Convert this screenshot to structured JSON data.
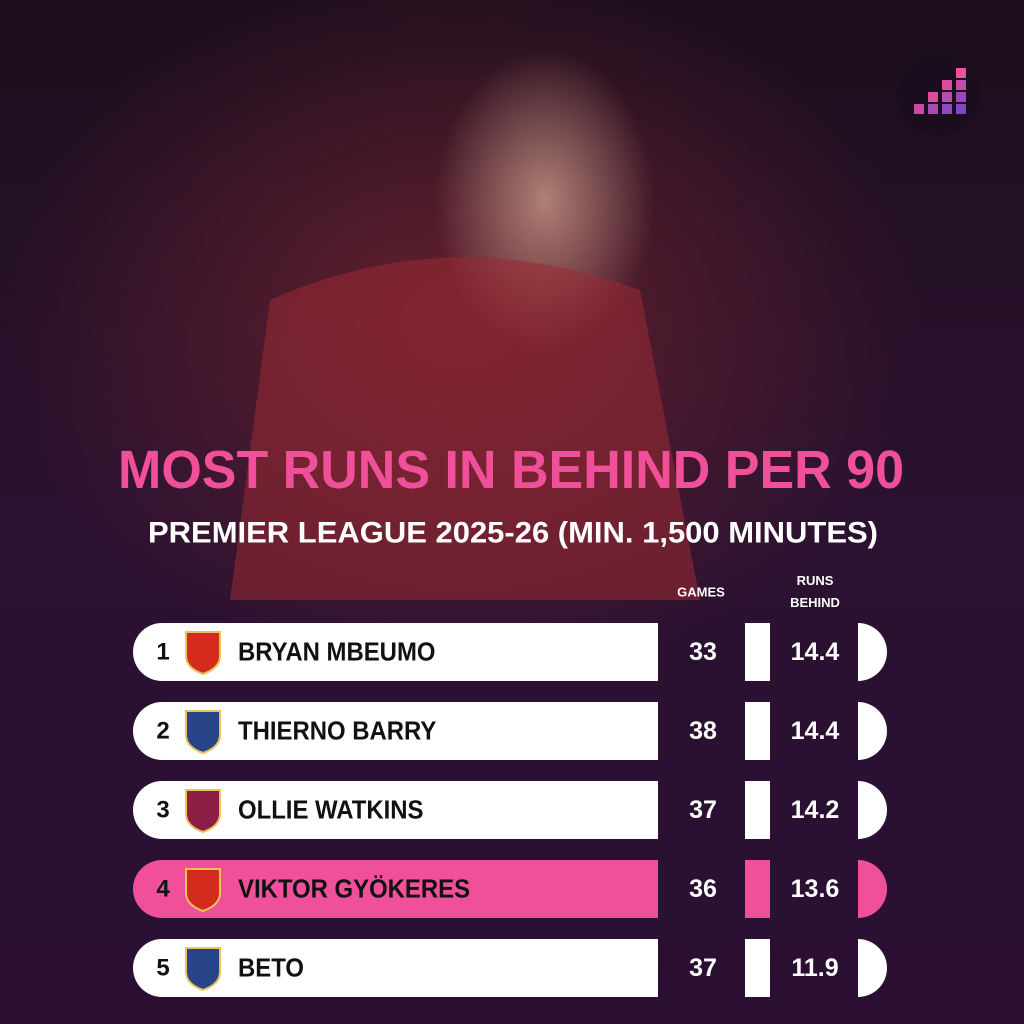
{
  "title": "MOST RUNS IN BEHIND PER 90",
  "subtitle": "PREMIER LEAGUE 2025-26 (MIN. 1,500 MINUTES)",
  "table": {
    "columns": [
      "GAMES",
      "RUNS BEHIND"
    ],
    "highlight_color": "#f0509a",
    "rows": [
      {
        "rank": 1,
        "name": "BRYAN MBEUMO",
        "games": 33,
        "runs_behind": 14.4,
        "highlight": false
      },
      {
        "rank": 2,
        "name": "THIERNO BARRY",
        "games": 38,
        "runs_behind": 14.4,
        "highlight": false
      },
      {
        "rank": 3,
        "name": "OLLIE WATKINS",
        "games": 37,
        "runs_behind": 14.2,
        "highlight": false
      },
      {
        "rank": 4,
        "name": "VIKTOR GYÖKERES",
        "games": 36,
        "runs_behind": 13.6,
        "highlight": true
      },
      {
        "rank": 5,
        "name": "BETO",
        "games": 37,
        "runs_behind": 11.9,
        "highlight": false
      }
    ]
  }
}
